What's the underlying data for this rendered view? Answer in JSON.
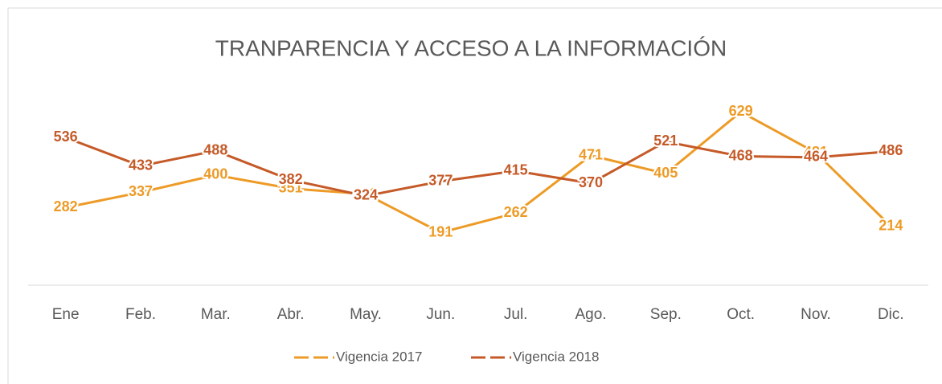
{
  "chart_data": {
    "type": "line",
    "title": "TRANPARENCIA Y ACCESO A LA INFORMACIÓN",
    "categories": [
      "Ene",
      "Feb.",
      "Mar.",
      "Abr.",
      "May.",
      "Jun.",
      "Jul.",
      "Ago.",
      "Sep.",
      "Oct.",
      "Nov.",
      "Dic."
    ],
    "series": [
      {
        "name": "Vigencia 2017",
        "color": "#ED9B26",
        "values": [
          282,
          337,
          400,
          351,
          331,
          191,
          262,
          471,
          405,
          629,
          481,
          214
        ]
      },
      {
        "name": "Vigencia 2018",
        "color": "#C55A28",
        "values": [
          536,
          433,
          488,
          382,
          324,
          377,
          415,
          370,
          521,
          468,
          464,
          486
        ]
      }
    ],
    "ylim": [
      0,
      700
    ],
    "legend": "bottom"
  }
}
